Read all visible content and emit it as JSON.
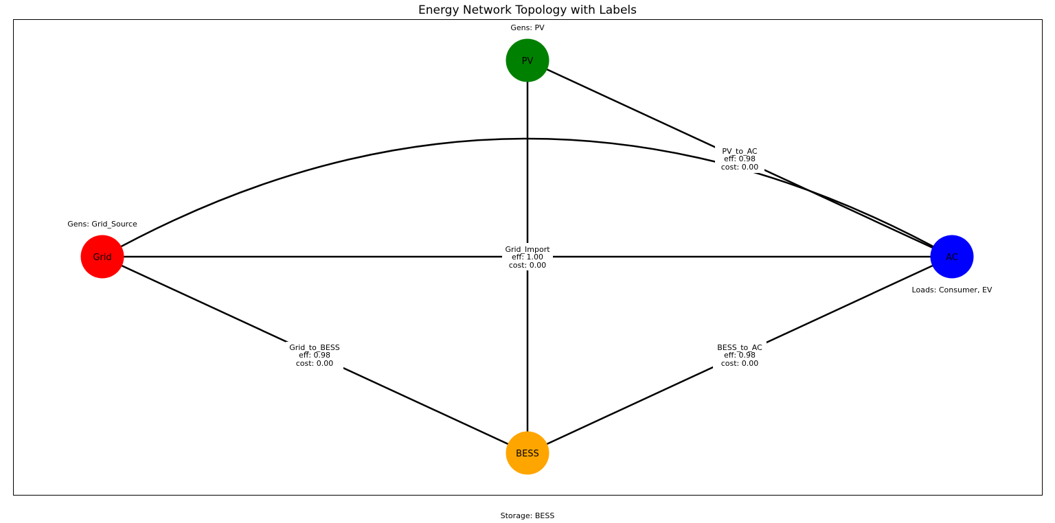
{
  "title": "Energy Network Topology with Labels",
  "nodes": [
    {
      "id": "grid",
      "label": "Grid",
      "color": "#ff0000"
    },
    {
      "id": "pv",
      "label": "PV",
      "color": "#008000"
    },
    {
      "id": "ac",
      "label": "AC",
      "color": "#0000ff"
    },
    {
      "id": "bess",
      "label": "BESS",
      "color": "#ffa500"
    }
  ],
  "edges": [
    {
      "id": "pv_to_ac",
      "from": "pv",
      "to": "ac",
      "labels": [
        "PV_to_AC",
        "eff: 0.98",
        "cost: 0.00"
      ]
    },
    {
      "id": "grid_import",
      "from": "grid",
      "to": "ac",
      "labels": [
        "Grid_Import",
        "eff: 1.00",
        "cost: 0.00"
      ]
    },
    {
      "id": "grid_to_bess",
      "from": "grid",
      "to": "bess",
      "labels": [
        "Grid_to_BESS",
        "eff: 0.98",
        "cost: 0.00"
      ]
    },
    {
      "id": "bess_to_ac",
      "from": "bess",
      "to": "ac",
      "labels": [
        "BESS_to_AC",
        "eff: 0.98",
        "cost: 0.00"
      ]
    },
    {
      "id": "pv_to_bess",
      "from": "pv",
      "to": "bess"
    },
    {
      "id": "grid_to_ac_curved",
      "from": "grid",
      "to": "ac"
    }
  ],
  "annotations": {
    "pv": "Gens: PV",
    "grid": "Gens: Grid_Source",
    "ac": "Loads: Consumer, EV",
    "bess": "Storage: BESS"
  }
}
